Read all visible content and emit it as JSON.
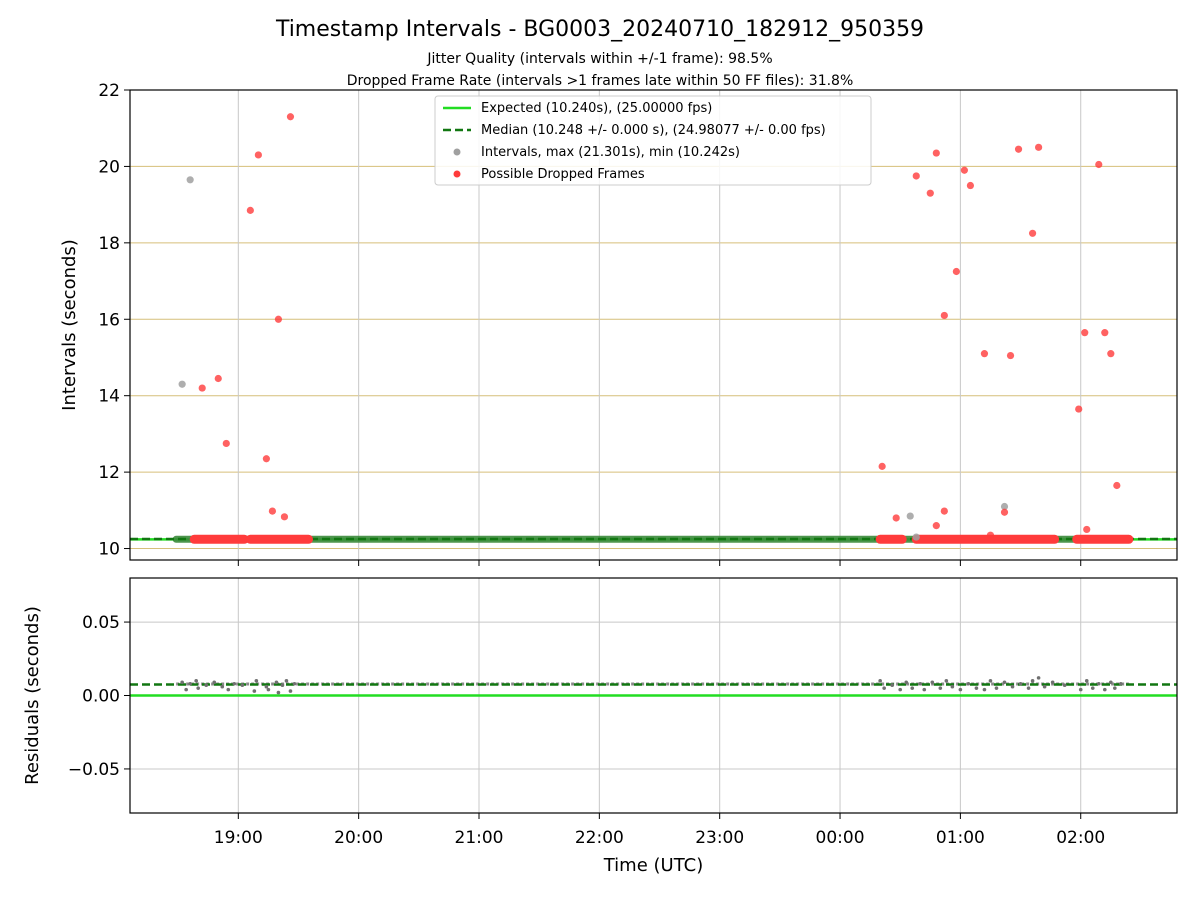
{
  "figure": {
    "title": "Timestamp Intervals - BG0003_20240710_182912_950359",
    "subtitle1": "Jitter Quality (intervals within +/-1 frame): 98.5%",
    "subtitle2": "Dropped Frame Rate (intervals >1 frames late within 50 FF files): 31.8%"
  },
  "colors": {
    "expected_line": "#22dd22",
    "median_line": "#117711",
    "intervals_points": "#a0a0a0",
    "dropped_points": "#ff3b3b",
    "hgrid_top": "#d6bf7a",
    "grid": "#c8c8c8",
    "residual_points": "#707070"
  },
  "chart_data": [
    {
      "type": "scatter",
      "panel": "intervals",
      "xlabel": "",
      "ylabel": "Intervals (seconds)",
      "x_ticks": [
        "19:00",
        "20:00",
        "21:00",
        "22:00",
        "23:00",
        "00:00",
        "01:00",
        "02:00"
      ],
      "xlim": [
        "18:06",
        "02:48"
      ],
      "ylim": [
        9.7,
        22
      ],
      "yticks": [
        10,
        12,
        14,
        16,
        18,
        20,
        22
      ],
      "grid": "on",
      "legend_position": "top-center",
      "legend": [
        "Expected (10.240s), (25.00000 fps)",
        "Median (10.248 +/- 0.000 s), (24.98077 +/- 0.00 fps)",
        "Intervals, max (21.301s), min (10.242s)",
        "Possible Dropped Frames"
      ],
      "expected_value": 10.24,
      "median_value": 10.248,
      "series": [
        {
          "name": "Intervals, max (21.301s), min (10.242s)",
          "color": "#a0a0a0",
          "points": [
            {
              "t": "18:32",
              "y": 14.3
            },
            {
              "t": "18:36",
              "y": 19.65
            },
            {
              "t": "00:35",
              "y": 10.85
            },
            {
              "t": "00:38",
              "y": 10.3
            },
            {
              "t": "01:22",
              "y": 11.1
            }
          ],
          "band": {
            "start": "18:29",
            "end": "02:23",
            "y": 10.242
          }
        },
        {
          "name": "Possible Dropped Frames",
          "color": "#ff3b3b",
          "points": [
            {
              "t": "18:42",
              "y": 14.2
            },
            {
              "t": "18:50",
              "y": 14.45
            },
            {
              "t": "18:54",
              "y": 12.75
            },
            {
              "t": "19:06",
              "y": 18.85
            },
            {
              "t": "19:10",
              "y": 20.3
            },
            {
              "t": "19:14",
              "y": 12.35
            },
            {
              "t": "19:17",
              "y": 10.98
            },
            {
              "t": "19:20",
              "y": 16.0
            },
            {
              "t": "19:23",
              "y": 10.83
            },
            {
              "t": "19:26",
              "y": 21.3
            },
            {
              "t": "00:21",
              "y": 12.15
            },
            {
              "t": "00:28",
              "y": 10.8
            },
            {
              "t": "00:38",
              "y": 19.75
            },
            {
              "t": "00:45",
              "y": 19.3
            },
            {
              "t": "00:48",
              "y": 10.6
            },
            {
              "t": "00:48",
              "y": 20.35
            },
            {
              "t": "00:52",
              "y": 16.1
            },
            {
              "t": "00:52",
              "y": 10.98
            },
            {
              "t": "00:58",
              "y": 17.25
            },
            {
              "t": "01:02",
              "y": 19.9
            },
            {
              "t": "01:05",
              "y": 19.5
            },
            {
              "t": "01:12",
              "y": 15.1
            },
            {
              "t": "01:15",
              "y": 10.35
            },
            {
              "t": "01:22",
              "y": 10.95
            },
            {
              "t": "01:25",
              "y": 15.05
            },
            {
              "t": "01:29",
              "y": 20.45
            },
            {
              "t": "01:36",
              "y": 18.25
            },
            {
              "t": "01:39",
              "y": 20.5
            },
            {
              "t": "01:59",
              "y": 13.65
            },
            {
              "t": "02:02",
              "y": 15.65
            },
            {
              "t": "02:03",
              "y": 10.5
            },
            {
              "t": "02:09",
              "y": 20.05
            },
            {
              "t": "02:12",
              "y": 15.65
            },
            {
              "t": "02:15",
              "y": 15.1
            },
            {
              "t": "02:18",
              "y": 11.65
            }
          ],
          "bands": [
            {
              "start": "18:38",
              "end": "19:03",
              "y": 10.242
            },
            {
              "start": "19:06",
              "end": "19:35",
              "y": 10.242
            },
            {
              "start": "00:20",
              "end": "00:31",
              "y": 10.242
            },
            {
              "start": "00:38",
              "end": "01:47",
              "y": 10.242
            },
            {
              "start": "01:58",
              "end": "02:24",
              "y": 10.242
            }
          ]
        }
      ]
    },
    {
      "type": "scatter",
      "panel": "residuals",
      "xlabel": "Time (UTC)",
      "ylabel": "Residuals (seconds)",
      "x_ticks": [
        "19:00",
        "20:00",
        "21:00",
        "22:00",
        "23:00",
        "00:00",
        "01:00",
        "02:00"
      ],
      "xlim": [
        "18:06",
        "02:48"
      ],
      "ylim": [
        -0.08,
        0.08
      ],
      "yticks": [
        -0.05,
        0.0,
        0.05
      ],
      "ytick_labels": [
        "−0.05",
        "0.00",
        "0.05"
      ],
      "grid": "on",
      "expected_value": 0.0,
      "median_value": 0.0075,
      "series": [
        {
          "name": "",
          "color": "#707070",
          "band": {
            "start": "18:29",
            "end": "02:24",
            "y": 0.0078
          },
          "points": [
            {
              "t": "18:32",
              "y": 0.009
            },
            {
              "t": "18:34",
              "y": 0.004
            },
            {
              "t": "18:36",
              "y": 0.008
            },
            {
              "t": "18:39",
              "y": 0.01
            },
            {
              "t": "18:40",
              "y": 0.005
            },
            {
              "t": "18:44",
              "y": 0.007
            },
            {
              "t": "18:48",
              "y": 0.009
            },
            {
              "t": "18:52",
              "y": 0.006
            },
            {
              "t": "18:55",
              "y": 0.004
            },
            {
              "t": "18:58",
              "y": 0.008
            },
            {
              "t": "19:02",
              "y": 0.007
            },
            {
              "t": "19:08",
              "y": 0.003
            },
            {
              "t": "19:09",
              "y": 0.01
            },
            {
              "t": "19:14",
              "y": 0.006
            },
            {
              "t": "19:15",
              "y": 0.004
            },
            {
              "t": "19:19",
              "y": 0.009
            },
            {
              "t": "19:20",
              "y": 0.002
            },
            {
              "t": "19:22",
              "y": 0.007
            },
            {
              "t": "19:24",
              "y": 0.01
            },
            {
              "t": "19:26",
              "y": 0.003
            },
            {
              "t": "19:28",
              "y": 0.008
            },
            {
              "t": "00:20",
              "y": 0.01
            },
            {
              "t": "00:22",
              "y": 0.005
            },
            {
              "t": "00:26",
              "y": 0.007
            },
            {
              "t": "00:30",
              "y": 0.004
            },
            {
              "t": "00:33",
              "y": 0.009
            },
            {
              "t": "00:36",
              "y": 0.005
            },
            {
              "t": "00:40",
              "y": 0.008
            },
            {
              "t": "00:42",
              "y": 0.004
            },
            {
              "t": "00:46",
              "y": 0.009
            },
            {
              "t": "00:50",
              "y": 0.005
            },
            {
              "t": "00:53",
              "y": 0.01
            },
            {
              "t": "00:56",
              "y": 0.006
            },
            {
              "t": "01:00",
              "y": 0.004
            },
            {
              "t": "01:04",
              "y": 0.008
            },
            {
              "t": "01:08",
              "y": 0.005
            },
            {
              "t": "01:12",
              "y": 0.004
            },
            {
              "t": "01:15",
              "y": 0.01
            },
            {
              "t": "01:18",
              "y": 0.005
            },
            {
              "t": "01:22",
              "y": 0.009
            },
            {
              "t": "01:26",
              "y": 0.006
            },
            {
              "t": "01:30",
              "y": 0.008
            },
            {
              "t": "01:34",
              "y": 0.005
            },
            {
              "t": "01:36",
              "y": 0.01
            },
            {
              "t": "01:39",
              "y": 0.012
            },
            {
              "t": "01:42",
              "y": 0.006
            },
            {
              "t": "01:46",
              "y": 0.009
            },
            {
              "t": "01:52",
              "y": 0.007
            },
            {
              "t": "02:00",
              "y": 0.004
            },
            {
              "t": "02:03",
              "y": 0.01
            },
            {
              "t": "02:06",
              "y": 0.005
            },
            {
              "t": "02:09",
              "y": 0.008
            },
            {
              "t": "02:12",
              "y": 0.004
            },
            {
              "t": "02:15",
              "y": 0.009
            },
            {
              "t": "02:17",
              "y": 0.005
            },
            {
              "t": "02:20",
              "y": 0.008
            }
          ]
        }
      ]
    }
  ]
}
